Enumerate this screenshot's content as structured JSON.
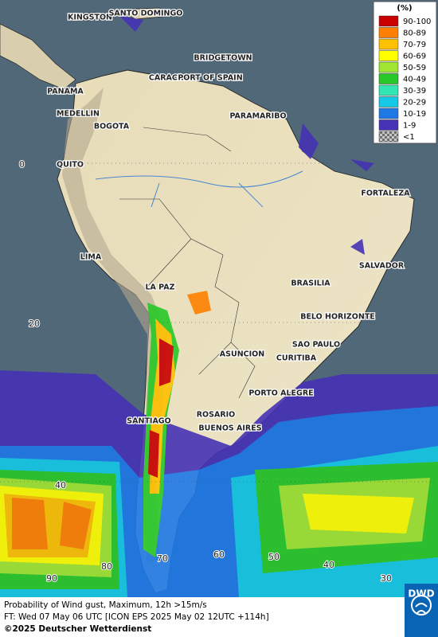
{
  "map": {
    "cities": [
      {
        "label": "KINGSTON"
      },
      {
        "label": "SANTO DOMINGO"
      },
      {
        "label": "BRIDGETOWN"
      },
      {
        "label": "CARACAS"
      },
      {
        "label": "PORT OF SPAIN"
      },
      {
        "label": "PANAMA"
      },
      {
        "label": "MEDELLIN"
      },
      {
        "label": "BOGOTA"
      },
      {
        "label": "PARAMARIBO"
      },
      {
        "label": "QUITO"
      },
      {
        "label": "FORTALEZA"
      },
      {
        "label": "LIMA"
      },
      {
        "label": "SALVADOR"
      },
      {
        "label": "BRASILIA"
      },
      {
        "label": "LA PAZ"
      },
      {
        "label": "BELO HORIZONTE"
      },
      {
        "label": "SAO PAULO"
      },
      {
        "label": "ASUNCION"
      },
      {
        "label": "CURITIBA"
      },
      {
        "label": "PORTO ALEGRE"
      },
      {
        "label": "ROSARIO"
      },
      {
        "label": "SANTIAGO"
      },
      {
        "label": "BUENOS AIRES"
      }
    ],
    "grid_labels": [
      "0",
      "20",
      "40",
      "90",
      "80",
      "70",
      "60",
      "50",
      "40",
      "30"
    ],
    "legend": {
      "title": "(%)",
      "items": [
        {
          "label": "90-100",
          "color": "#c80000"
        },
        {
          "label": "80-89",
          "color": "#ff8000"
        },
        {
          "label": "70-79",
          "color": "#ffc000"
        },
        {
          "label": "60-69",
          "color": "#ffff00"
        },
        {
          "label": "50-59",
          "color": "#a0e632"
        },
        {
          "label": "40-49",
          "color": "#28c828"
        },
        {
          "label": "30-39",
          "color": "#32e6b4"
        },
        {
          "label": "20-29",
          "color": "#14c8e6"
        },
        {
          "label": "10-19",
          "color": "#1e78e6"
        },
        {
          "label": "1-9",
          "color": "#4632b4"
        },
        {
          "label": "<1",
          "color": "#a0a0a0"
        }
      ]
    },
    "caption": {
      "line1": "Probability of Wind gust, Maximum, 12h >15m/s",
      "line2": "FT: Wed 07 May 06 UTC [ICON EPS 2025 May 02 12UTC +114h]",
      "line3": "©2025 Deutscher Wetterdienst"
    },
    "logo": "DWD"
  }
}
